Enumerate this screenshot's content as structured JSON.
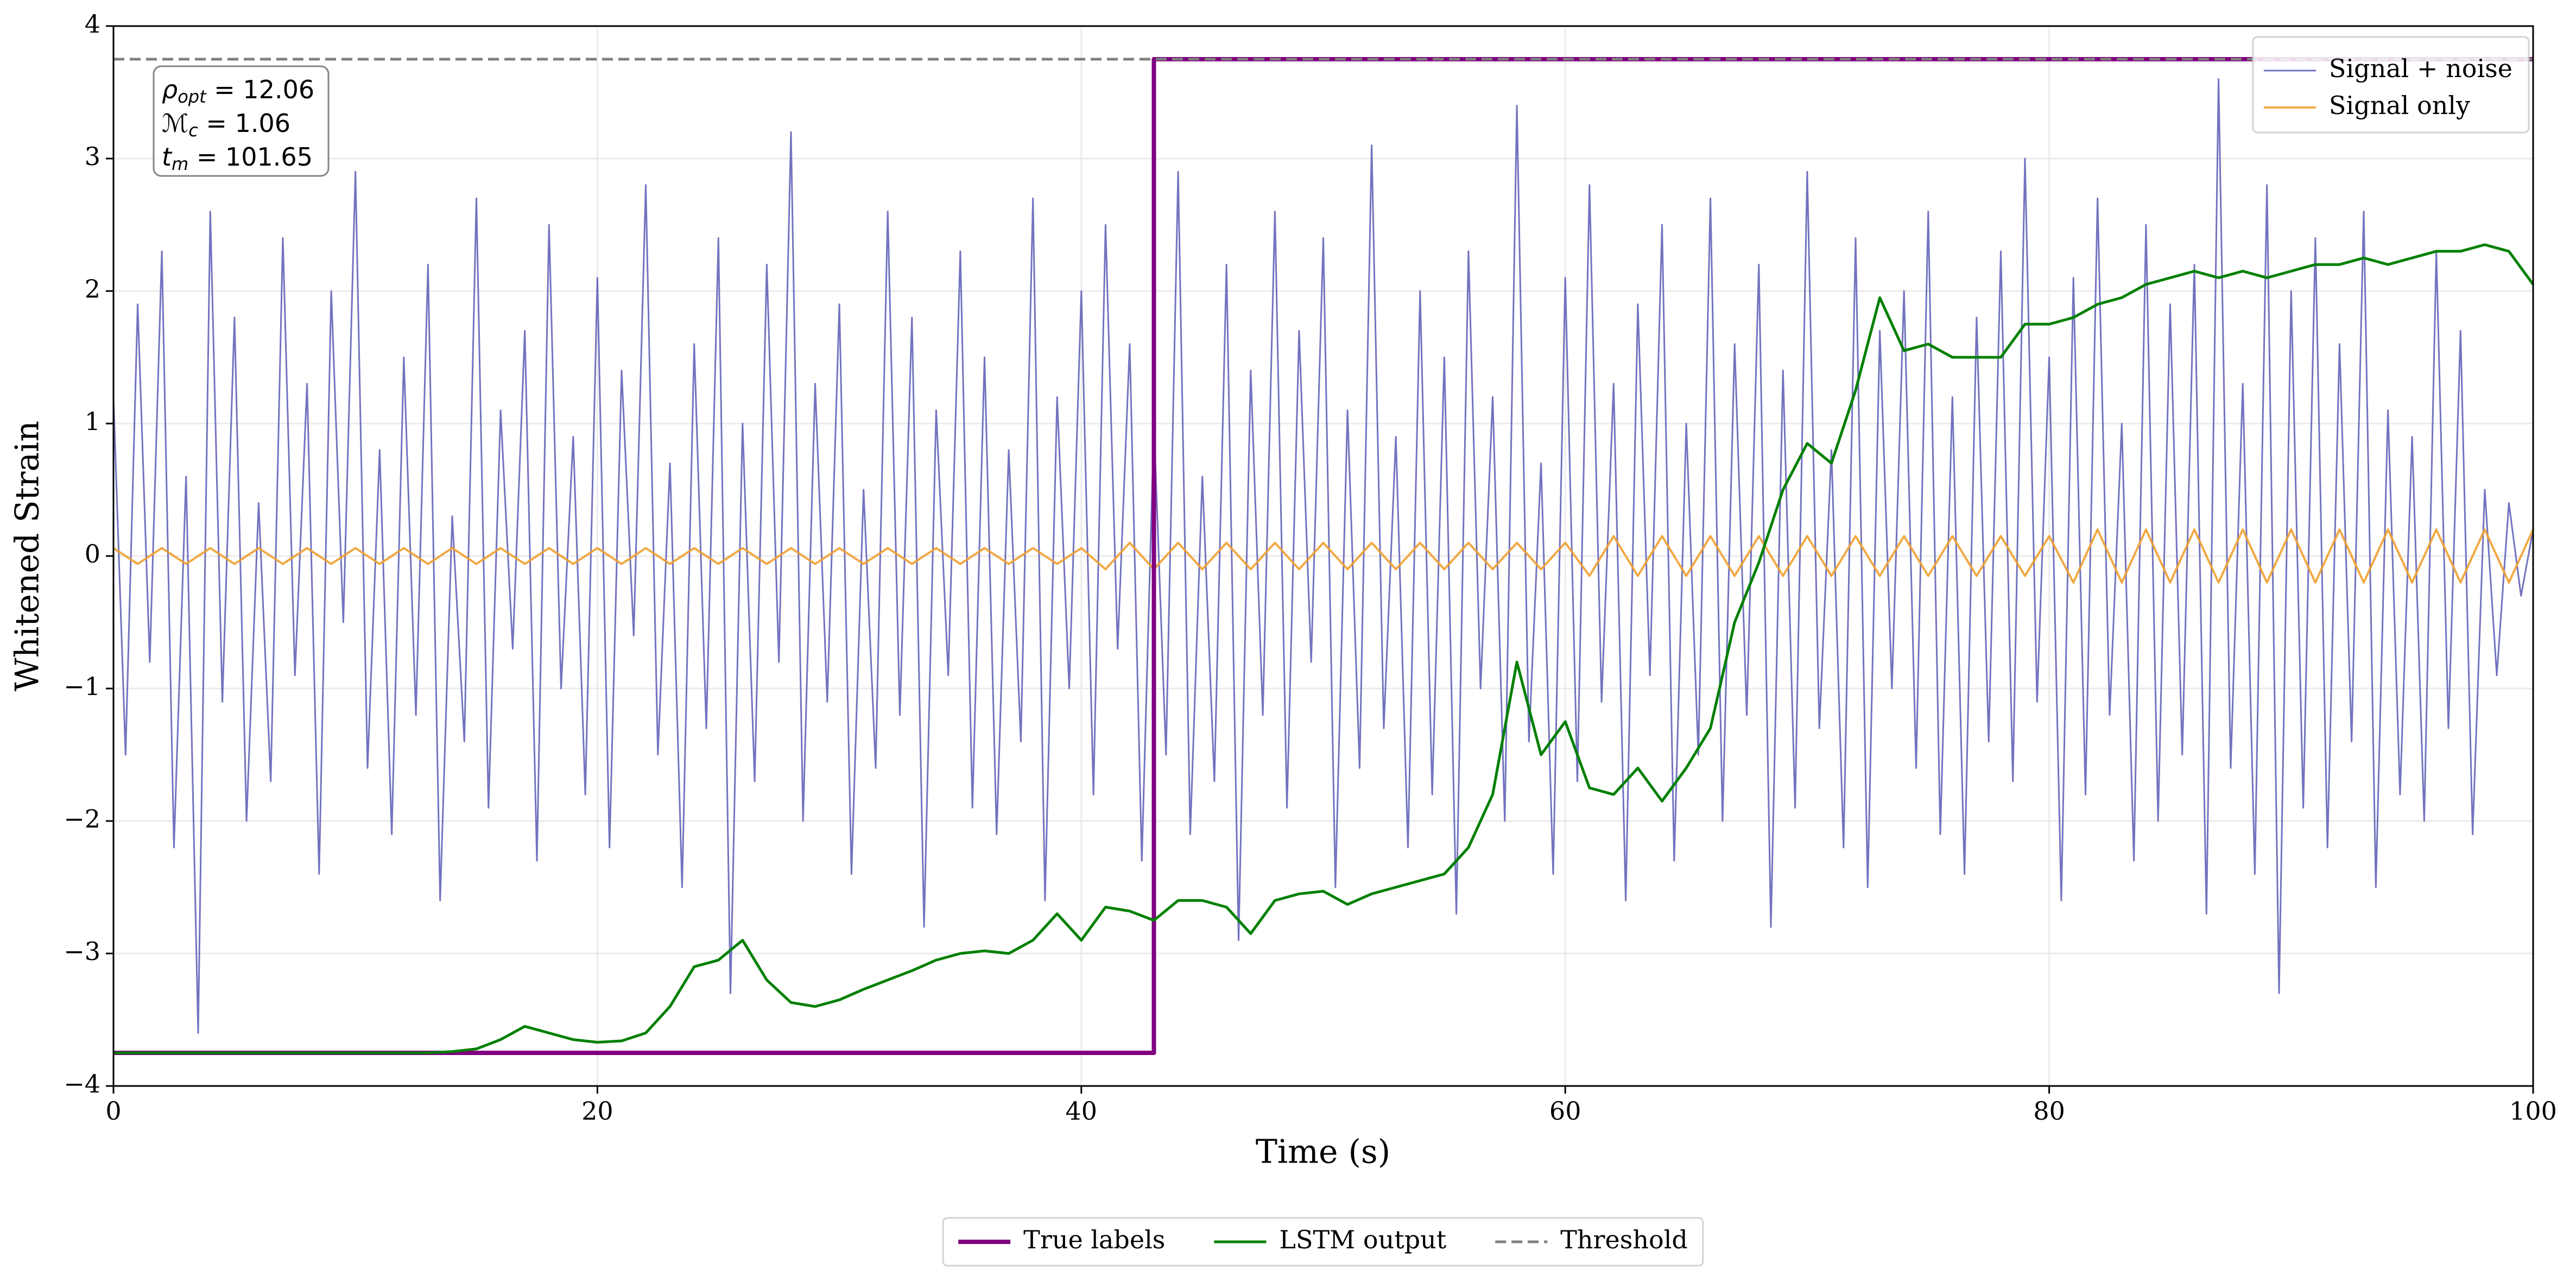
{
  "chart_data": {
    "type": "line",
    "x_label": "Time (s)",
    "y_label": "Whitened Strain",
    "xlim": [
      0,
      100
    ],
    "xticks": [
      0,
      20,
      40,
      60,
      80,
      100
    ],
    "ylim": [
      -4,
      4
    ],
    "yticks": [
      {
        "value": -4,
        "label": "−4"
      },
      {
        "value": -3,
        "label": "−3"
      },
      {
        "value": -2,
        "label": "−2"
      },
      {
        "value": -1,
        "label": "−1"
      },
      0,
      1,
      2,
      3,
      4
    ],
    "grid": true,
    "annotation": [
      {
        "symbol": "ρ",
        "sub": "opt",
        "text": " = 12.06"
      },
      {
        "symbol": "ℳ",
        "sub": "c",
        "text": " = 1.06"
      },
      {
        "symbol": "t",
        "sub": "m",
        "text": " = 101.65"
      }
    ],
    "series": [
      {
        "name": "Signal + noise",
        "color": "#5b5bb5",
        "style": "solid",
        "width": 3,
        "opacity": 0.85,
        "legend_loc": "upper right",
        "x": [
          0,
          0.5,
          1,
          1.5,
          2,
          2.5,
          3,
          3.5,
          4,
          4.5,
          5,
          5.5,
          6,
          6.5,
          7,
          7.5,
          8,
          8.5,
          9,
          9.5,
          10,
          10.5,
          11,
          11.5,
          12,
          12.5,
          13,
          13.5,
          14,
          14.5,
          15,
          15.5,
          16,
          16.5,
          17,
          17.5,
          18,
          18.5,
          19,
          19.5,
          20,
          20.5,
          21,
          21.5,
          22,
          22.5,
          23,
          23.5,
          24,
          24.5,
          25,
          25.5,
          26,
          26.5,
          27,
          27.5,
          28,
          28.5,
          29,
          29.5,
          30,
          30.5,
          31,
          31.5,
          32,
          32.5,
          33,
          33.5,
          34,
          34.5,
          35,
          35.5,
          36,
          36.5,
          37,
          37.5,
          38,
          38.5,
          39,
          39.5,
          40,
          40.5,
          41,
          41.5,
          42,
          42.5,
          43,
          43.5,
          44,
          44.5,
          45,
          45.5,
          46,
          46.5,
          47,
          47.5,
          48,
          48.5,
          49,
          49.5,
          50,
          50.5,
          51,
          51.5,
          52,
          52.5,
          53,
          53.5,
          54,
          54.5,
          55,
          55.5,
          56,
          56.5,
          57,
          57.5,
          58,
          58.5,
          59,
          59.5,
          60,
          60.5,
          61,
          61.5,
          62,
          62.5,
          63,
          63.5,
          64,
          64.5,
          65,
          65.5,
          66,
          66.5,
          67,
          67.5,
          68,
          68.5,
          69,
          69.5,
          70,
          70.5,
          71,
          71.5,
          72,
          72.5,
          73,
          73.5,
          74,
          74.5,
          75,
          75.5,
          76,
          76.5,
          77,
          77.5,
          78,
          78.5,
          79,
          79.5,
          80,
          80.5,
          81,
          81.5,
          82,
          82.5,
          83,
          83.5,
          84,
          84.5,
          85,
          85.5,
          86,
          86.5,
          87,
          87.5,
          88,
          88.5,
          89,
          89.5,
          90,
          90.5,
          91,
          91.5,
          92,
          92.5,
          93,
          93.5,
          94,
          94.5,
          95,
          95.5,
          96,
          96.5,
          97,
          97.5,
          98,
          98.5,
          99,
          99.5,
          100
        ],
        "values": [
          1.2,
          -1.5,
          1.9,
          -0.8,
          2.3,
          -2.2,
          0.6,
          -3.6,
          2.6,
          -1.1,
          1.8,
          -2.0,
          0.4,
          -1.7,
          2.4,
          -0.9,
          1.3,
          -2.4,
          2.0,
          -0.5,
          2.9,
          -1.6,
          0.8,
          -2.1,
          1.5,
          -1.2,
          2.2,
          -2.6,
          0.3,
          -1.4,
          2.7,
          -1.9,
          1.1,
          -0.7,
          1.7,
          -2.3,
          2.5,
          -1.0,
          0.9,
          -1.8,
          2.1,
          -2.2,
          1.4,
          -0.6,
          2.8,
          -1.5,
          0.7,
          -2.5,
          1.6,
          -1.3,
          2.4,
          -3.3,
          1.0,
          -1.7,
          2.2,
          -0.8,
          3.2,
          -2.0,
          1.3,
          -1.1,
          1.9,
          -2.4,
          0.5,
          -1.6,
          2.6,
          -1.2,
          1.8,
          -2.8,
          1.1,
          -0.9,
          2.3,
          -1.9,
          1.5,
          -2.1,
          0.8,
          -1.4,
          2.7,
          -2.6,
          1.2,
          -1.0,
          2.0,
          -1.8,
          2.5,
          -0.7,
          1.6,
          -2.3,
          1.0,
          -1.5,
          2.9,
          -2.1,
          0.6,
          -1.7,
          2.2,
          -2.9,
          1.4,
          -1.2,
          2.6,
          -1.9,
          1.7,
          -0.8,
          2.4,
          -2.5,
          1.1,
          -1.6,
          3.1,
          -1.3,
          0.9,
          -2.2,
          2.0,
          -1.8,
          1.5,
          -2.7,
          2.3,
          -1.0,
          1.2,
          -2.0,
          3.4,
          -1.4,
          0.7,
          -2.4,
          2.1,
          -1.7,
          2.8,
          -1.1,
          1.3,
          -2.6,
          1.9,
          -0.9,
          2.5,
          -2.3,
          1.0,
          -1.5,
          2.7,
          -2.0,
          1.6,
          -1.2,
          2.2,
          -2.8,
          1.4,
          -1.9,
          2.9,
          -1.3,
          0.8,
          -2.2,
          2.4,
          -2.5,
          1.7,
          -1.0,
          2.0,
          -1.6,
          2.6,
          -2.1,
          1.2,
          -2.4,
          1.8,
          -1.4,
          2.3,
          -1.7,
          3.0,
          -1.1,
          1.5,
          -2.6,
          2.1,
          -1.8,
          2.7,
          -1.2,
          1.0,
          -2.3,
          2.5,
          -2.0,
          1.9,
          -1.5,
          2.2,
          -2.7,
          3.6,
          -1.6,
          1.3,
          -2.4,
          2.8,
          -3.3,
          2.0,
          -1.9,
          2.4,
          -2.2,
          1.6,
          -1.4,
          2.6,
          -2.5,
          1.1,
          -1.8,
          0.9,
          -2.0,
          2.3,
          -1.3,
          1.7,
          -2.1,
          0.5,
          -0.9,
          0.4,
          -0.3,
          0.2
        ]
      },
      {
        "name": "Signal only",
        "color": "#f0a030",
        "style": "solid",
        "width": 4,
        "opacity": 0.9,
        "legend_loc": "upper right",
        "x": [
          0,
          1,
          2,
          3,
          4,
          5,
          6,
          7,
          8,
          9,
          10,
          11,
          12,
          13,
          14,
          15,
          16,
          17,
          18,
          19,
          20,
          21,
          22,
          23,
          24,
          25,
          26,
          27,
          28,
          29,
          30,
          31,
          32,
          33,
          34,
          35,
          36,
          37,
          38,
          39,
          40,
          41,
          42,
          43,
          44,
          45,
          46,
          47,
          48,
          49,
          50,
          51,
          52,
          53,
          54,
          55,
          56,
          57,
          58,
          59,
          60,
          61,
          62,
          63,
          64,
          65,
          66,
          67,
          68,
          69,
          70,
          71,
          72,
          73,
          74,
          75,
          76,
          77,
          78,
          79,
          80,
          81,
          82,
          83,
          84,
          85,
          86,
          87,
          88,
          89,
          90,
          91,
          92,
          93,
          94,
          95,
          96,
          97,
          98,
          99,
          100
        ],
        "values": [
          0.06,
          -0.06,
          0.06,
          -0.06,
          0.06,
          -0.06,
          0.06,
          -0.06,
          0.06,
          -0.06,
          0.06,
          -0.06,
          0.06,
          -0.06,
          0.06,
          -0.06,
          0.06,
          -0.06,
          0.06,
          -0.06,
          0.06,
          -0.06,
          0.06,
          -0.06,
          0.06,
          -0.06,
          0.06,
          -0.06,
          0.06,
          -0.06,
          0.06,
          -0.06,
          0.06,
          -0.06,
          0.06,
          -0.06,
          0.06,
          -0.06,
          0.06,
          -0.06,
          0.06,
          -0.1,
          0.1,
          -0.1,
          0.1,
          -0.1,
          0.1,
          -0.1,
          0.1,
          -0.1,
          0.1,
          -0.1,
          0.1,
          -0.1,
          0.1,
          -0.1,
          0.1,
          -0.1,
          0.1,
          -0.1,
          0.1,
          -0.15,
          0.15,
          -0.15,
          0.15,
          -0.15,
          0.15,
          -0.15,
          0.15,
          -0.15,
          0.15,
          -0.15,
          0.15,
          -0.15,
          0.15,
          -0.15,
          0.15,
          -0.15,
          0.15,
          -0.15,
          0.15,
          -0.2,
          0.2,
          -0.2,
          0.2,
          -0.2,
          0.2,
          -0.2,
          0.2,
          -0.2,
          0.2,
          -0.2,
          0.2,
          -0.2,
          0.2,
          -0.2,
          0.2,
          -0.2,
          0.2,
          -0.2,
          0.2
        ]
      },
      {
        "name": "True labels",
        "color": "#800080",
        "style": "solid",
        "width": 8,
        "opacity": 1,
        "legend_loc": "lower center",
        "x": [
          0,
          43,
          43,
          100
        ],
        "values": [
          -3.75,
          -3.75,
          3.75,
          3.75
        ]
      },
      {
        "name": "LSTM output",
        "color": "#008000",
        "style": "solid",
        "width": 5,
        "opacity": 1,
        "legend_loc": "lower center",
        "x": [
          0,
          1,
          2,
          3,
          4,
          5,
          6,
          7,
          8,
          9,
          10,
          11,
          12,
          13,
          14,
          15,
          16,
          17,
          18,
          19,
          20,
          21,
          22,
          23,
          24,
          25,
          26,
          27,
          28,
          29,
          30,
          31,
          32,
          33,
          34,
          35,
          36,
          37,
          38,
          39,
          40,
          41,
          42,
          43,
          44,
          45,
          46,
          47,
          48,
          49,
          50,
          51,
          52,
          53,
          54,
          55,
          56,
          57,
          58,
          59,
          60,
          61,
          62,
          63,
          64,
          65,
          66,
          67,
          68,
          69,
          70,
          71,
          72,
          73,
          74,
          75,
          76,
          77,
          78,
          79,
          80,
          81,
          82,
          83,
          84,
          85,
          86,
          87,
          88,
          89,
          90,
          91,
          92,
          93,
          94,
          95,
          96,
          97,
          98,
          99,
          100
        ],
        "values": [
          -3.75,
          -3.75,
          -3.75,
          -3.75,
          -3.75,
          -3.75,
          -3.75,
          -3.75,
          -3.75,
          -3.75,
          -3.75,
          -3.75,
          -3.75,
          -3.75,
          -3.74,
          -3.72,
          -3.65,
          -3.55,
          -3.6,
          -3.65,
          -3.67,
          -3.66,
          -3.6,
          -3.4,
          -3.1,
          -3.05,
          -2.9,
          -3.2,
          -3.37,
          -3.4,
          -3.35,
          -3.27,
          -3.2,
          -3.13,
          -3.05,
          -3.0,
          -2.98,
          -3.0,
          -2.9,
          -2.7,
          -2.9,
          -2.65,
          -2.68,
          -2.75,
          -2.6,
          -2.6,
          -2.65,
          -2.85,
          -2.6,
          -2.55,
          -2.53,
          -2.63,
          -2.55,
          -2.5,
          -2.45,
          -2.4,
          -2.2,
          -1.8,
          -0.8,
          -1.5,
          -1.25,
          -1.75,
          -1.8,
          -1.6,
          -1.85,
          -1.6,
          -1.3,
          -0.5,
          -0.05,
          0.5,
          0.85,
          0.7,
          1.25,
          1.95,
          1.55,
          1.6,
          1.5,
          1.5,
          1.5,
          1.75,
          1.75,
          1.8,
          1.9,
          1.95,
          2.05,
          2.1,
          2.15,
          2.1,
          2.15,
          2.1,
          2.15,
          2.2,
          2.2,
          2.25,
          2.2,
          2.25,
          2.3,
          2.3,
          2.35,
          2.3,
          2.05
        ]
      },
      {
        "name": "Threshold",
        "color": "#808080",
        "style": "dashed",
        "width": 5,
        "opacity": 1,
        "legend_loc": "lower center",
        "x": [
          0,
          100
        ],
        "values": [
          3.75,
          3.75
        ]
      }
    ]
  }
}
